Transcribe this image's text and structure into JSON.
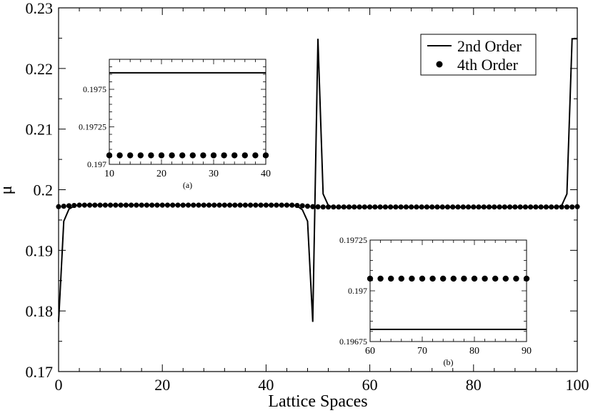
{
  "chart_data": {
    "type": "line",
    "title": "",
    "xlabel": "Lattice Spaces",
    "ylabel": "μ",
    "xlim": [
      0,
      100
    ],
    "ylim": [
      0.17,
      0.23
    ],
    "xticks": [
      "0",
      "20",
      "40",
      "60",
      "80",
      "100"
    ],
    "yticks": [
      "0.17",
      "0.18",
      "0.19",
      "0.2",
      "0.21",
      "0.22",
      "0.23"
    ],
    "grid": false,
    "legend_position": "top-right",
    "series": [
      {
        "name": "2nd Order",
        "style": "line",
        "color": "#000000",
        "points": [
          [
            0,
            0.1782
          ],
          [
            1,
            0.1948
          ],
          [
            2,
            0.1968
          ],
          [
            3,
            0.1973
          ],
          [
            4,
            0.1975
          ],
          [
            45,
            0.1975
          ],
          [
            46,
            0.1973
          ],
          [
            47,
            0.1967
          ],
          [
            48,
            0.1948
          ],
          [
            49,
            0.1782
          ],
          [
            50,
            0.2249
          ],
          [
            51,
            0.1993
          ],
          [
            52,
            0.1974
          ],
          [
            53,
            0.1971
          ],
          [
            96,
            0.1971
          ],
          [
            97,
            0.1974
          ],
          [
            98,
            0.1993
          ],
          [
            99,
            0.2249
          ],
          [
            100,
            0.2249
          ]
        ]
      },
      {
        "name": "4th Order",
        "style": "markers",
        "color": "#000000",
        "x_range": [
          0,
          100
        ],
        "x_step": 1,
        "values_by_x": [
          [
            0,
            0.1972
          ],
          [
            2,
            0.19735
          ],
          [
            4,
            0.19745
          ],
          [
            45,
            0.19745
          ],
          [
            47,
            0.19735
          ],
          [
            49,
            0.1972
          ],
          [
            51,
            0.19715
          ],
          [
            99,
            0.19715
          ],
          [
            100,
            0.1972
          ]
        ]
      }
    ],
    "insets": [
      {
        "label": "(a)",
        "xlim": [
          10,
          40
        ],
        "ylim": [
          0.197,
          0.1977
        ],
        "xticks": [
          "10",
          "20",
          "30",
          "40"
        ],
        "yticks": [
          "0.197",
          "0.19725",
          "0.1975"
        ],
        "line_value": 0.19761,
        "marker_value": 0.19706,
        "marker_x_range": [
          10,
          40
        ],
        "marker_x_step": 2
      },
      {
        "label": "(b)",
        "xlim": [
          60,
          90
        ],
        "ylim": [
          0.19675,
          0.19725
        ],
        "xticks": [
          "60",
          "70",
          "80",
          "90"
        ],
        "yticks": [
          "0.19675",
          "0.197",
          "0.19725"
        ],
        "line_value": 0.19681,
        "marker_value": 0.19706,
        "marker_x_range": [
          60,
          90
        ],
        "marker_x_step": 2
      }
    ]
  }
}
